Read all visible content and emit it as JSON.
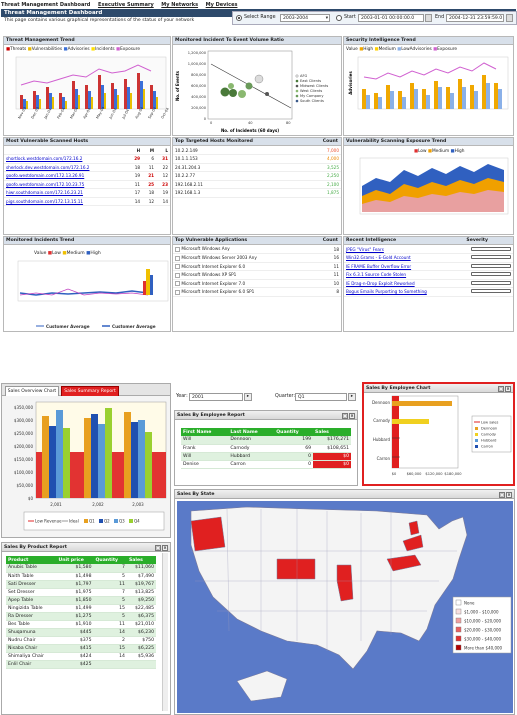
{
  "nav": {
    "title": "Threat Management Dashboard",
    "links": [
      "Executive Summary",
      "My Networks",
      "My Devices"
    ]
  },
  "header": {
    "title": "Threat Management Dashboard",
    "subtitle": "This page contains various graphical representations of the status of your network"
  },
  "range": {
    "select_label": "Select Range",
    "select_value": "2003-2004",
    "start_label": "Start",
    "start_value": "2003-01-01 00:00:00.0",
    "end_label": "End",
    "end_value": "2004-12-31 23:59:59.0"
  },
  "panels": {
    "threat_trend": {
      "title": "Threat Management Trend",
      "legend": [
        "Threats",
        "Vulnerabilities",
        "Advisories",
        "Incidents",
        "Exposure"
      ],
      "xlabels": [
        "Nov-03",
        "Dec-03",
        "Jan-04",
        "Feb-04",
        "Mar-04",
        "Apr-04",
        "May-04",
        "Jun-04",
        "Jul-04",
        "Aug-04",
        "Sep-04",
        "Oct-04"
      ]
    },
    "incident_ratio": {
      "title": "Monitored Incident To Event Volume Ratio",
      "ylabel": "No. of Events",
      "xlabel": "No. of Incidents (60 days)",
      "yticks": [
        "1,200,000",
        "1,000,000",
        "800,000",
        "600,000",
        "400,000",
        "200,000",
        "0"
      ],
      "xticks": [
        "0",
        "40",
        "80"
      ],
      "legend": [
        "AFG",
        "East Clients",
        "Midwest Clients",
        "West Clients",
        "My Company",
        "South Clients"
      ]
    },
    "intel_trend": {
      "title": "Security Intelligence Trend",
      "legend": [
        "Value",
        "High",
        "Medium",
        "LowAdvisories",
        "Exposure"
      ],
      "ylabel": "Advisories"
    },
    "vuln_hosts": {
      "title": "Most Vulnerable Scanned Hosts",
      "cols": [
        "",
        "H",
        "M",
        "L"
      ],
      "rows": [
        [
          "shortlock.westdomain.com/172.16.2",
          "29",
          "6",
          "31"
        ],
        [
          "sherlock.dev.westdomain.com/172.16.2",
          "18",
          "11",
          "22"
        ],
        [
          "goofo.westdomain.com/172.13.26.91",
          "19",
          "21",
          "12"
        ],
        [
          "goofo.westdomain.com/172.10.23.75",
          "11",
          "25",
          "23"
        ],
        [
          "hiwr.southdomain.com/172.16.23.21",
          "17",
          "18",
          "19"
        ],
        [
          "pigs.southdomain.com/172.13.15.11",
          "14",
          "12",
          "14"
        ]
      ]
    },
    "targeted_hosts": {
      "title": "Top Targeted Hosts Monitored",
      "count_label": "Count",
      "rows": [
        [
          "10.2.2.149",
          "7,000"
        ],
        [
          "10.1.1.153",
          "4,000"
        ],
        [
          "24.31.204.3",
          "3,525"
        ],
        [
          "10.2.2.77",
          "2,250"
        ],
        [
          "192.168.2.11",
          "2,100"
        ],
        [
          "192.168.1.3",
          "1,875"
        ]
      ]
    },
    "exposure_trend": {
      "title": "Vulnerability Scanning Exposure Trend",
      "legend": [
        "Low",
        "Medium",
        "High"
      ]
    },
    "monitored_incidents": {
      "title": "Monitored Incidents Trend",
      "legend": [
        "Value",
        "Low",
        "Medium",
        "High"
      ],
      "legend2": [
        "Customer Average",
        "Customer Average"
      ]
    },
    "vuln_apps": {
      "title": "Top Vulnerable Applications",
      "count_label": "Count",
      "rows": [
        [
          "Microsoft Windows Any",
          "18"
        ],
        [
          "Microsoft Windows Server 2003 Any",
          "16"
        ],
        [
          "Microsoft Internet Explorer 6.0",
          "11"
        ],
        [
          "Microsoft Windows XP SP1",
          "11"
        ],
        [
          "Microsoft Internet Explorer 7.0",
          "10"
        ],
        [
          "Microsoft Internet Explorer 6.0 SP1",
          "8"
        ]
      ]
    },
    "recent_intel": {
      "title": "Recent Intelligence",
      "severity_label": "Severity",
      "rows": [
        "JPEG \"Virus\" Fears",
        "Win32.Grams - E-Gold Account",
        "IE FRAME Buffer Overflow Error",
        "Fix 6.3.1 Source Code Stolen",
        "IE Drag-n-Drop Exploit Reworked",
        "Bogus Emails Purporting to Something"
      ]
    }
  },
  "sales": {
    "tabs": [
      "Sales Overview Chart",
      "Sales Summary Report"
    ],
    "year_label": "Year:",
    "year_value": "2001",
    "quarter_label": "Quarter:",
    "quarter_value": "Q1",
    "overview_chart": {
      "yticks": [
        "$350,000",
        "$300,000",
        "$250,000",
        "$200,000",
        "$150,000",
        "$100,000",
        "$50,000",
        "$0"
      ],
      "xticks": [
        "2,001",
        "2,002",
        "2,003"
      ],
      "legend": [
        "Low Revenue",
        "Ideal",
        "Q1",
        "Q2",
        "Q3",
        "Q4"
      ]
    },
    "by_employee_report": {
      "title": "Sales By Employee Report",
      "cols": [
        "First Name",
        "Last Name",
        "Quantity",
        "Sales"
      ],
      "rows": [
        [
          "Will",
          "Dennoon",
          "199",
          "$176,271"
        ],
        [
          "Frank",
          "Carnody",
          "69",
          "$108,651"
        ],
        [
          "Will",
          "Hubbard",
          "0",
          "$0"
        ],
        [
          "Denise",
          "Carron",
          "0",
          "$0"
        ]
      ]
    },
    "by_employee_chart": {
      "title": "Sales By Employee Chart",
      "names": [
        "Dennoon",
        "Carnody",
        "Hubbard",
        "Carron"
      ],
      "xticks": [
        "$0",
        "$60,000",
        "$120,000",
        "$180,000"
      ],
      "legend": [
        "Low sales",
        "Dennoon",
        "Carnody",
        "Hubbard",
        "Carron"
      ]
    },
    "by_product": {
      "title": "Sales By Product Report",
      "cols": [
        "Product",
        "Unit price",
        "Quantity",
        "Sales"
      ],
      "rows": [
        [
          "Anubis Table",
          "$1,580",
          "7",
          "$11,060"
        ],
        [
          "Naith Table",
          "$1,498",
          "5",
          "$7,490"
        ],
        [
          "Sati Dresser",
          "$1,797",
          "11",
          "$19,767"
        ],
        [
          "Set Dresser",
          "$1,975",
          "7",
          "$13,825"
        ],
        [
          "Apep Table",
          "$1,850",
          "5",
          "$9,250"
        ],
        [
          "Ningizida Table",
          "$1,499",
          "15",
          "$22,485"
        ],
        [
          "Ra Dresser",
          "$1,275",
          "5",
          "$6,375"
        ],
        [
          "Bes Table",
          "$1,910",
          "11",
          "$21,010"
        ],
        [
          "Shuqamuna",
          "$445",
          "14",
          "$6,230"
        ],
        [
          "Nudru Chair",
          "$375",
          "2",
          "$750"
        ],
        [
          "Nisaba Chair",
          "$415",
          "15",
          "$6,225"
        ],
        [
          "Shimaliya Chair",
          "$424",
          "14",
          "$5,936"
        ],
        [
          "Enlil Chair",
          "$425",
          "",
          ""
        ]
      ]
    },
    "by_state": {
      "title": "Sales By State",
      "legend": [
        "None",
        "$1,000 - $10,000",
        "$10,000 - $20,000",
        "$20,000 - $30,000",
        "$30,000 - $40,000",
        "More than $40,000"
      ]
    }
  }
}
